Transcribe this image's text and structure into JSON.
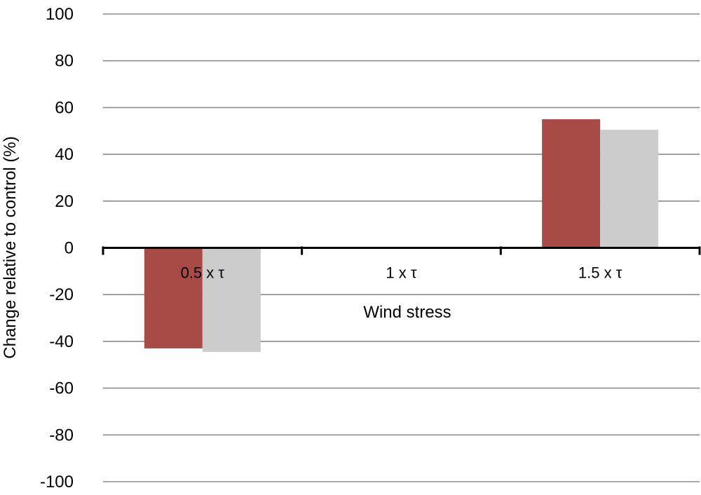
{
  "chart_data": {
    "type": "bar",
    "categories": [
      "0.5 x τ",
      "1 x τ",
      "1.5 x τ"
    ],
    "series": [
      {
        "values": [
          -43,
          0,
          55
        ],
        "color": "#a84a45"
      },
      {
        "values": [
          -44.5,
          0,
          50.5
        ],
        "color": "#cccccc"
      }
    ],
    "xlabel": "Wind stress",
    "ylabel": "Change relative to control (%)",
    "ylim": [
      -100,
      100
    ],
    "yticks": [
      100,
      80,
      60,
      40,
      20,
      0,
      -20,
      -40,
      -60,
      -80,
      -100
    ],
    "grid": true,
    "legend": false
  }
}
